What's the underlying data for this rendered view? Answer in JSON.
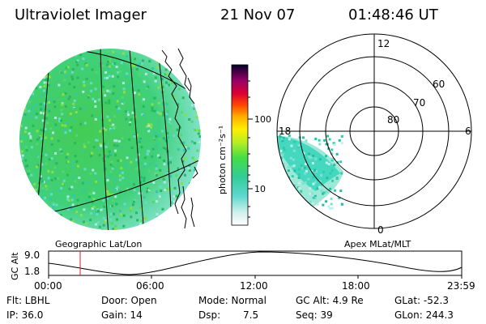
{
  "header": {
    "instrument": "Ultraviolet Imager",
    "date": "21 Nov 07",
    "time": "01:48:46 UT"
  },
  "left_panel": {
    "caption": "Geographic Lat/Lon"
  },
  "colorbar": {
    "unit_label": "photon cm⁻²s⁻¹",
    "tick_100": "100",
    "tick_10": "10"
  },
  "polar_plot": {
    "caption": "Apex MLat/MLT",
    "mlt_labels": [
      "12",
      "18",
      "6",
      "0"
    ],
    "lat_labels": [
      "60",
      "70",
      "80"
    ]
  },
  "altitude_strip": {
    "ylabel": "GC Alt",
    "ymax": "9.0",
    "ymin": "1.8",
    "x_ticks": [
      "00:00",
      "06:00",
      "12:00",
      "18:00",
      "23:59"
    ]
  },
  "status": {
    "row1": {
      "filter": "Flt: LBHL",
      "door": "Door: Open",
      "mode": "Mode: Normal",
      "gc_alt": "GC Alt: 4.9 Re",
      "glat": "GLat: -52.3"
    },
    "row2": {
      "ip": "IP: 36.0",
      "gain": "Gain: 14",
      "dsp_label": "Dsp:",
      "dsp_value": "7.5",
      "seq": "Seq: 39",
      "glon": "GLon: 244.3"
    }
  },
  "colors": {
    "disk": "#33cc66",
    "disk_light": "#9ee8d8",
    "marker": "#cc2222"
  }
}
